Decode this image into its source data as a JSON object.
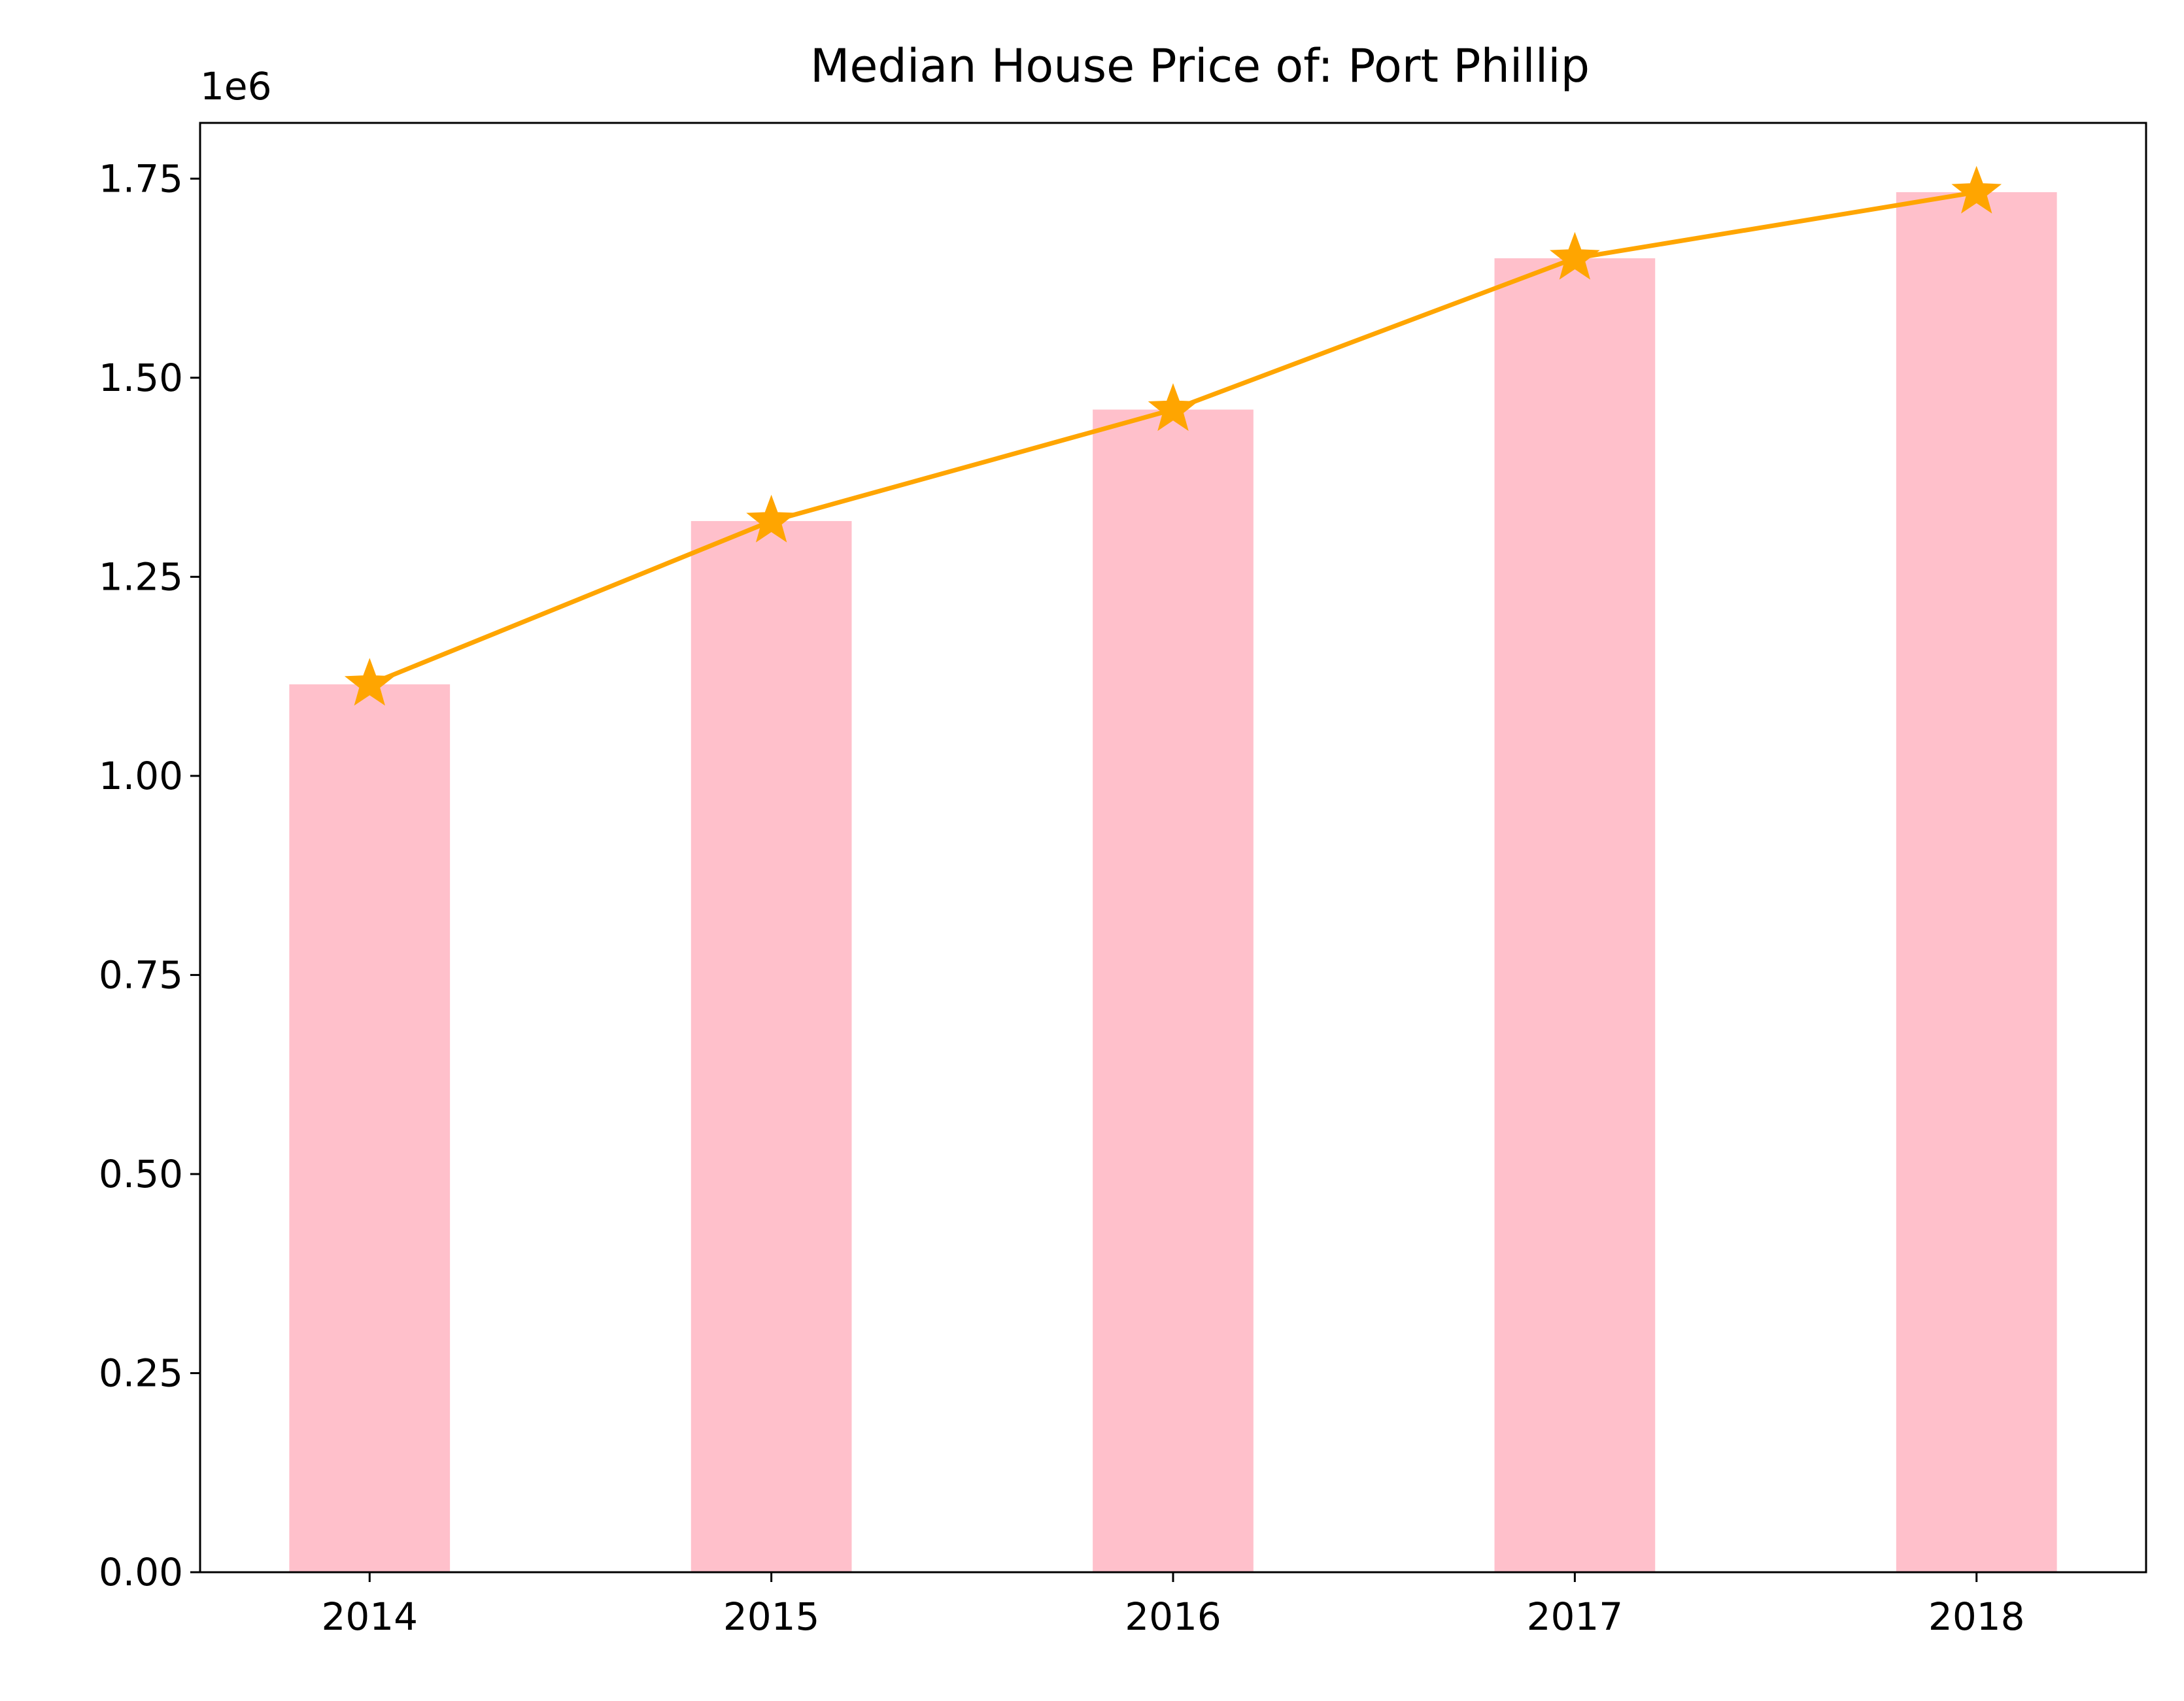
{
  "chart_data": {
    "type": "bar",
    "title": "Median House Price of: Port Phillip",
    "xlabel": "",
    "ylabel": "",
    "offset_label": "1e6",
    "categories": [
      "2014",
      "2015",
      "2016",
      "2017",
      "2018"
    ],
    "bar_values": [
      1115000,
      1320000,
      1460000,
      1650000,
      1733000
    ],
    "line_values": [
      1115000,
      1320000,
      1460000,
      1650000,
      1733000
    ],
    "ylim": [
      0,
      1820000
    ],
    "yticks": [
      0,
      250000,
      500000,
      750000,
      1000000,
      1250000,
      1500000,
      1750000
    ],
    "ytick_labels": [
      "0.00",
      "0.25",
      "0.50",
      "0.75",
      "1.00",
      "1.25",
      "1.50",
      "1.75"
    ],
    "grid": false,
    "line_marker": "star",
    "colors": {
      "bar": "#ffc0cb",
      "line": "#ffa500",
      "axis": "#000000"
    }
  }
}
